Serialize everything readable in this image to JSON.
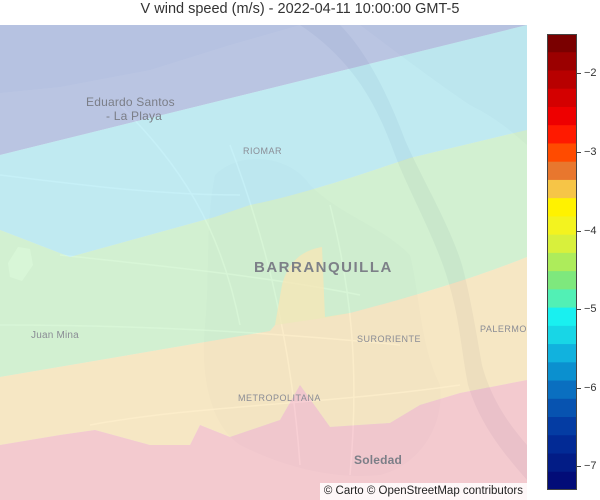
{
  "title": "V wind speed (m/s) - 2022-04-11 10:00:00 GMT-5",
  "attribution": "© Carto © OpenStreetMap contributors",
  "map": {
    "places": [
      {
        "key": "eduardo",
        "text": "Eduardo Santos"
      },
      {
        "key": "laplaya",
        "text": "- La Playa"
      },
      {
        "key": "riomar",
        "text": "RIOMAR"
      },
      {
        "key": "barranquilla",
        "text": "BARRANQUILLA"
      },
      {
        "key": "juanmina",
        "text": "Juan Mina"
      },
      {
        "key": "suroriente",
        "text": "SURORIENTE"
      },
      {
        "key": "palermo",
        "text": "PALERMO"
      },
      {
        "key": "metropolitana",
        "text": "METROPOLITANA"
      },
      {
        "key": "soledad",
        "text": "Soledad"
      }
    ],
    "contour_bands": [
      {
        "name": "band-north",
        "color": "#a9b8df"
      },
      {
        "name": "band-2",
        "color": "#aee9f3"
      },
      {
        "name": "band-3",
        "color": "#c7f2c6"
      },
      {
        "name": "band-4",
        "color": "#fbe6b4"
      },
      {
        "name": "band-south",
        "color": "#f6bcc3"
      }
    ]
  },
  "colorbar": {
    "min": -7.3,
    "max": -1.5,
    "ticks": [
      "−2",
      "−3",
      "−4",
      "−5",
      "−6",
      "−7"
    ],
    "tick_values": [
      -2,
      -3,
      -4,
      -5,
      -6,
      -7
    ],
    "colors": [
      "#7a0000",
      "#9b0000",
      "#b80000",
      "#d40000",
      "#ee0000",
      "#ff1a00",
      "#ff4b00",
      "#e8772e",
      "#f6c547",
      "#fff200",
      "#f3f31f",
      "#d8f03c",
      "#adec5b",
      "#7ee87d",
      "#52f0b5",
      "#19f0f0",
      "#18d6e6",
      "#11b2de",
      "#0b90cf",
      "#0a6fc0",
      "#0753b0",
      "#043ca3",
      "#022a95",
      "#021c86",
      "#020c78"
    ]
  }
}
